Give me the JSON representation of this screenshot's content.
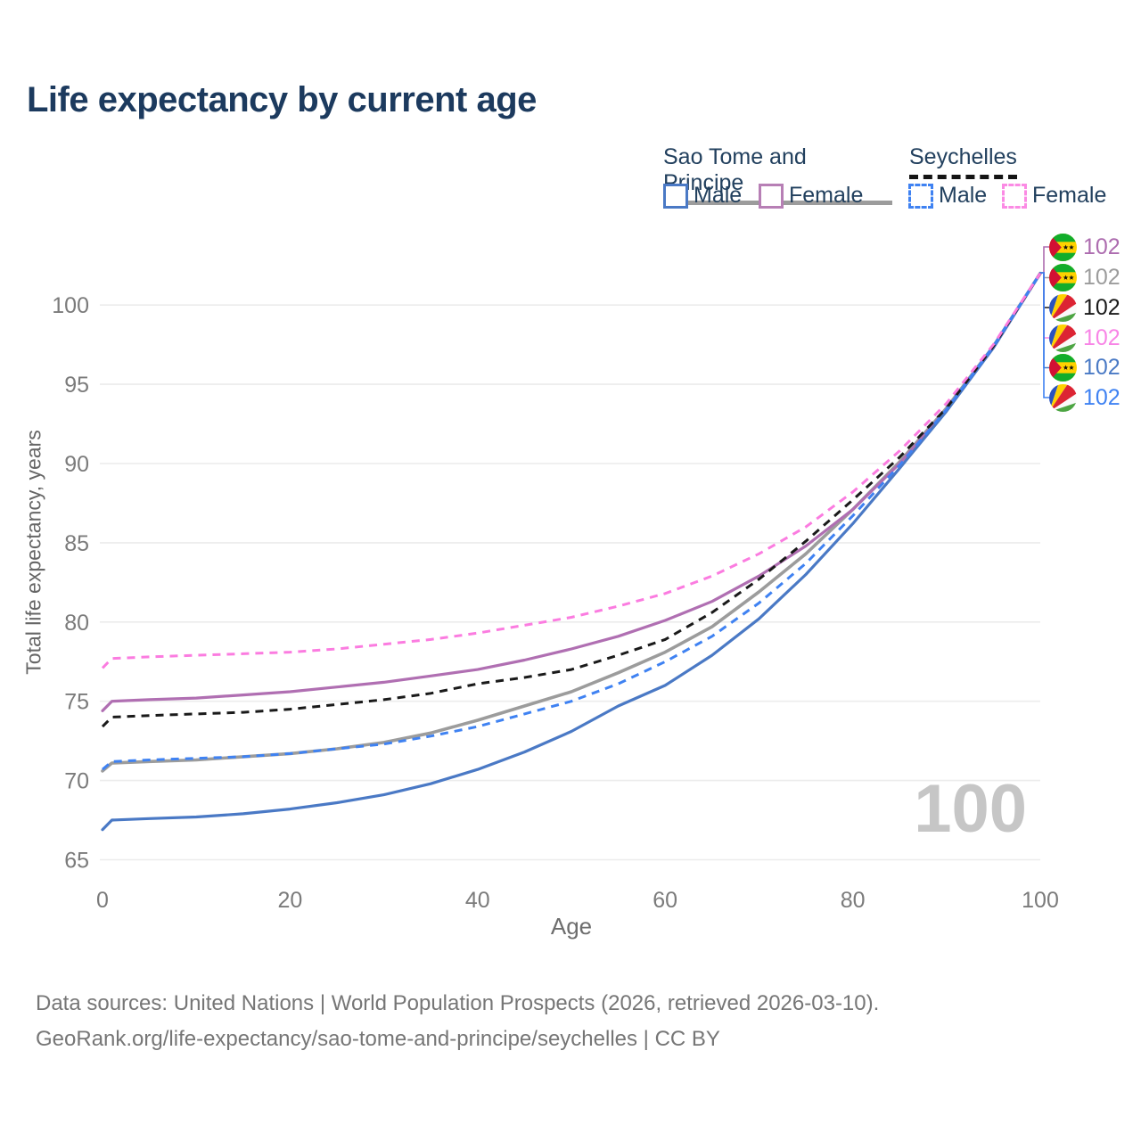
{
  "title": "Life expectancy by current age",
  "legend": {
    "stp": {
      "label": "Sao Tome and Principe",
      "male": "Male",
      "female": "Female",
      "all_color": "#9c9c9c",
      "male_color": "#4a79c5",
      "female_color": "#b77fb5"
    },
    "sey": {
      "label": "Seychelles",
      "male": "Male",
      "female": "Female",
      "all_color": "#1a1a1a",
      "male_color": "#3f82f2",
      "female_color": "#fb8ae4"
    }
  },
  "chart_data": {
    "type": "line",
    "title": "Life expectancy by current age",
    "xlabel": "Age",
    "ylabel": "Total life expectancy, years",
    "xlim": [
      0,
      100
    ],
    "ylim": [
      65,
      103
    ],
    "x_ticks": [
      0,
      20,
      40,
      60,
      80,
      100
    ],
    "y_ticks": [
      65,
      70,
      75,
      80,
      85,
      90,
      95,
      100
    ],
    "grid": "horizontal",
    "legend_position": "top-right",
    "x": [
      0,
      1,
      5,
      10,
      15,
      20,
      25,
      30,
      35,
      40,
      45,
      50,
      55,
      60,
      65,
      70,
      75,
      80,
      85,
      90,
      95,
      100
    ],
    "series": [
      {
        "key": "stp_all",
        "name": "Sao Tome and Principe — All",
        "color": "#9c9c9c",
        "style": "solid",
        "width": 3.6,
        "values": [
          70.6,
          71.1,
          71.2,
          71.3,
          71.5,
          71.7,
          72.0,
          72.4,
          73.0,
          73.8,
          74.7,
          75.6,
          76.8,
          78.1,
          79.7,
          81.9,
          84.3,
          87.1,
          90.1,
          93.5,
          97.4,
          102
        ]
      },
      {
        "key": "stp_female",
        "name": "Sao Tome and Principe — Female",
        "color": "#b06fb2",
        "style": "solid",
        "width": 3.2,
        "values": [
          74.4,
          75.0,
          75.1,
          75.2,
          75.4,
          75.6,
          75.9,
          76.2,
          76.6,
          77.0,
          77.6,
          78.3,
          79.1,
          80.1,
          81.3,
          82.9,
          84.8,
          87.1,
          90.0,
          93.4,
          97.3,
          102
        ]
      },
      {
        "key": "stp_male",
        "name": "Sao Tome and Principe — Male",
        "color": "#4a79c5",
        "style": "solid",
        "width": 3.2,
        "values": [
          66.9,
          67.5,
          67.6,
          67.7,
          67.9,
          68.2,
          68.6,
          69.1,
          69.8,
          70.7,
          71.8,
          73.1,
          74.7,
          76.0,
          77.9,
          80.2,
          83.0,
          86.2,
          89.7,
          93.3,
          97.3,
          102
        ]
      },
      {
        "key": "sey_all",
        "name": "Seychelles — All",
        "color": "#1a1a1a",
        "style": "dashed",
        "width": 3.0,
        "values": [
          73.4,
          74.0,
          74.1,
          74.2,
          74.3,
          74.5,
          74.8,
          75.1,
          75.5,
          76.1,
          76.5,
          77.0,
          77.9,
          78.9,
          80.6,
          82.7,
          85.1,
          87.7,
          90.4,
          93.5,
          97.4,
          102
        ]
      },
      {
        "key": "sey_male",
        "name": "Seychelles — Male",
        "color": "#3f82f2",
        "style": "dashed",
        "width": 3.0,
        "values": [
          70.7,
          71.2,
          71.3,
          71.4,
          71.5,
          71.7,
          72.0,
          72.3,
          72.8,
          73.4,
          74.2,
          75.0,
          76.1,
          77.5,
          79.1,
          81.2,
          83.7,
          86.7,
          89.9,
          93.4,
          97.4,
          102
        ]
      },
      {
        "key": "sey_female",
        "name": "Seychelles — Female",
        "color": "#fb7ce0",
        "style": "dashed",
        "width": 3.0,
        "values": [
          77.1,
          77.7,
          77.8,
          77.9,
          78.0,
          78.1,
          78.3,
          78.6,
          78.9,
          79.3,
          79.8,
          80.3,
          81.0,
          81.8,
          82.9,
          84.3,
          86.0,
          88.2,
          90.8,
          93.8,
          97.5,
          102
        ]
      }
    ]
  },
  "end_labels": [
    {
      "country": "Sao Tome and Principe",
      "flag": "stp",
      "series": "stp_female",
      "value": "102",
      "color": "#ad6caf"
    },
    {
      "country": "Sao Tome and Principe",
      "flag": "stp",
      "series": "stp_all",
      "value": "102",
      "color": "#9c9c9c"
    },
    {
      "country": "Seychelles",
      "flag": "sey",
      "series": "sey_all",
      "value": "102",
      "color": "#1a1a1a"
    },
    {
      "country": "Seychelles",
      "flag": "sey",
      "series": "sey_female",
      "value": "102",
      "color": "#f885e6"
    },
    {
      "country": "Sao Tome and Principe",
      "flag": "stp",
      "series": "stp_male",
      "value": "102",
      "color": "#4a7ac5"
    },
    {
      "country": "Seychelles",
      "flag": "sey",
      "series": "sey_male",
      "value": "102",
      "color": "#3f82f2"
    }
  ],
  "watermark": "100",
  "footer": {
    "line1": "Data sources: United Nations | World Population Prospects (2026, retrieved 2026-03-10).",
    "line2": "GeoRank.org/life-expectancy/sao-tome-and-principe/seychelles | CC BY"
  }
}
